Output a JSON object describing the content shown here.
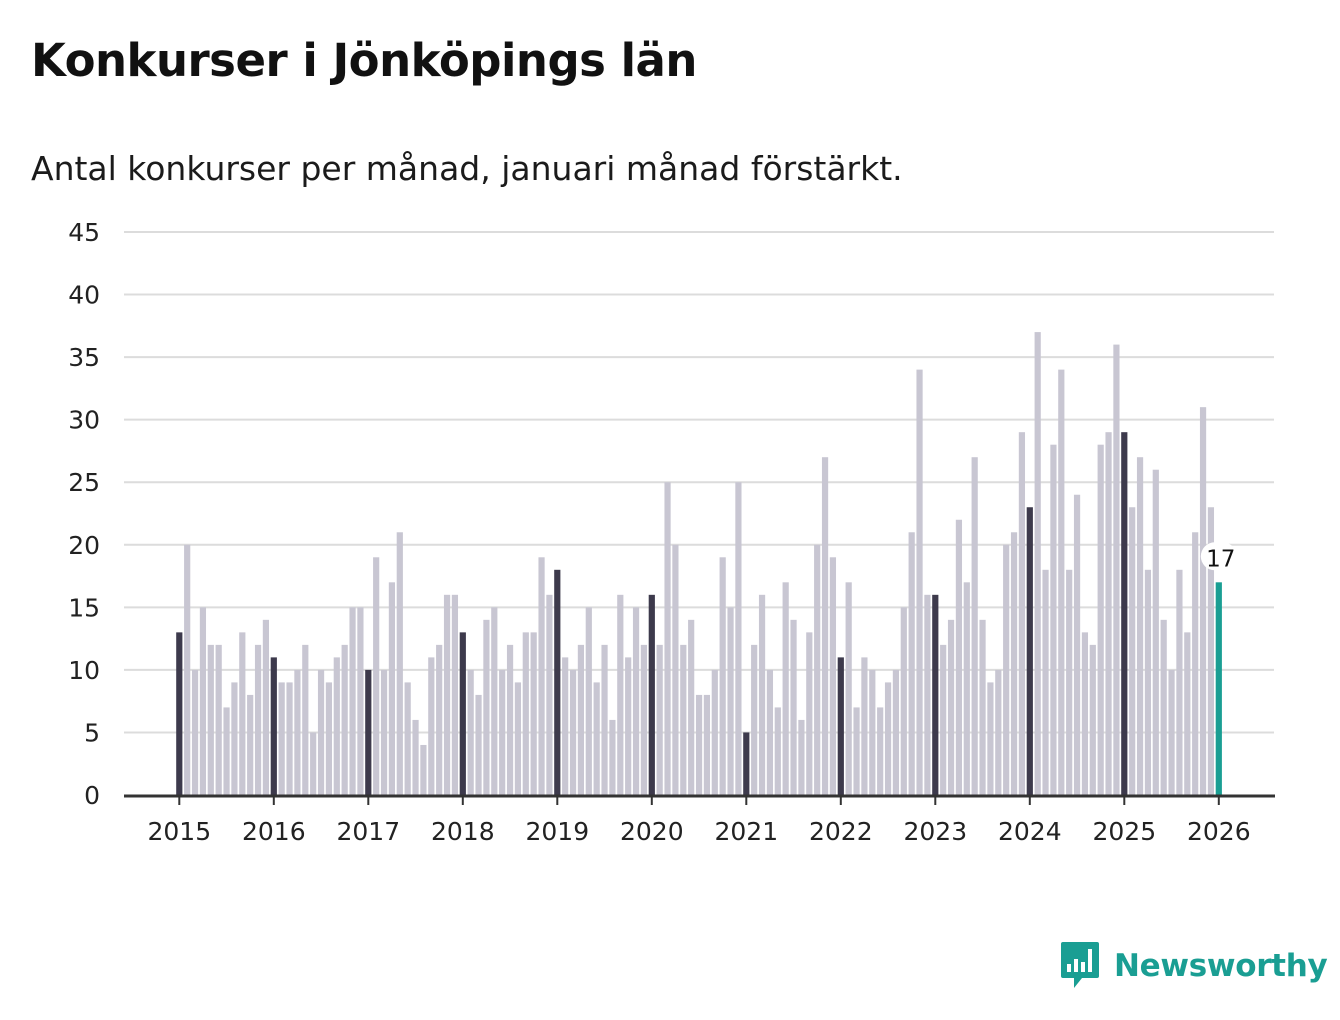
{
  "title": "Konkurser i Jönköpings län",
  "subtitle": "Antal konkurser per månad, januari månad förstärkt.",
  "brand": {
    "name": "Newsworthy",
    "color": "#1a9e93",
    "icon": "bar-chart-speech-bubble-icon"
  },
  "colors": {
    "bar_default": "#c8c6d2",
    "bar_january": "#3d3a4c",
    "bar_latest": "#1a9e93",
    "grid": "#dcdcdc",
    "axis": "#333333",
    "text": "#222222"
  },
  "chart_data": {
    "type": "bar",
    "title": "Konkurser i Jönköpings län",
    "subtitle": "Antal konkurser per månad, januari månad förstärkt.",
    "xlabel": "",
    "ylabel": "",
    "ylim": [
      0,
      45
    ],
    "yticks": [
      0,
      5,
      10,
      15,
      20,
      25,
      30,
      35,
      40,
      45
    ],
    "grid": true,
    "start": "2015-01",
    "x_tick_labels": [
      "2015",
      "2016",
      "2017",
      "2018",
      "2019",
      "2020",
      "2021",
      "2022",
      "2023",
      "2024",
      "2025",
      "2026"
    ],
    "highlight": "january",
    "latest_label": "17",
    "values": [
      13,
      20,
      10,
      15,
      12,
      12,
      7,
      9,
      13,
      8,
      12,
      14,
      11,
      9,
      9,
      10,
      12,
      5,
      10,
      9,
      11,
      12,
      15,
      15,
      10,
      19,
      10,
      17,
      21,
      9,
      6,
      4,
      11,
      12,
      16,
      16,
      13,
      10,
      8,
      14,
      15,
      10,
      12,
      9,
      13,
      13,
      19,
      16,
      18,
      11,
      10,
      12,
      15,
      9,
      12,
      6,
      16,
      11,
      15,
      12,
      16,
      12,
      25,
      20,
      12,
      14,
      8,
      8,
      10,
      19,
      15,
      25,
      5,
      12,
      16,
      10,
      7,
      17,
      14,
      6,
      13,
      20,
      27,
      19,
      11,
      17,
      7,
      11,
      10,
      7,
      9,
      10,
      15,
      21,
      34,
      16,
      16,
      12,
      14,
      22,
      17,
      27,
      14,
      9,
      10,
      20,
      21,
      29,
      23,
      37,
      18,
      28,
      34,
      18,
      24,
      13,
      12,
      28,
      29,
      36,
      29,
      23,
      27,
      18,
      26,
      14,
      10,
      18,
      13,
      21,
      31,
      23,
      17
    ]
  }
}
